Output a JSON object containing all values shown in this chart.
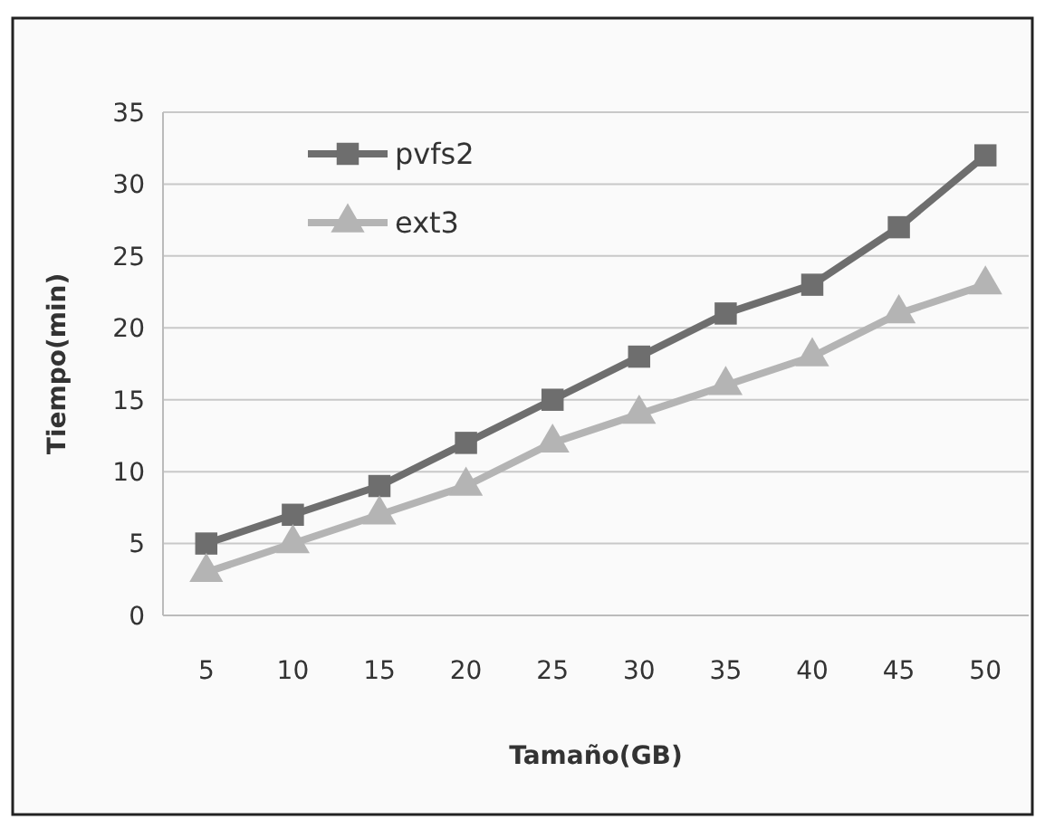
{
  "chart_data": {
    "type": "line",
    "xlabel": "Tamaño(GB)",
    "ylabel": "Tiempo(min)",
    "categories": [
      "5",
      "10",
      "15",
      "20",
      "25",
      "30",
      "35",
      "40",
      "45",
      "50"
    ],
    "series": [
      {
        "name": "pvfs2",
        "color": "#6e6e6e",
        "marker": "square",
        "values": [
          5,
          7,
          9,
          12,
          15,
          18,
          21,
          23,
          27,
          32
        ]
      },
      {
        "name": "ext3",
        "color": "#b4b4b4",
        "marker": "triangle",
        "values": [
          3,
          5,
          7,
          9,
          12,
          14,
          16,
          18,
          21,
          23
        ]
      }
    ],
    "ylim": [
      0,
      35
    ],
    "yticks": [
      0,
      5,
      10,
      15,
      20,
      25,
      30,
      35
    ],
    "grid": "y",
    "legend": "top left"
  }
}
